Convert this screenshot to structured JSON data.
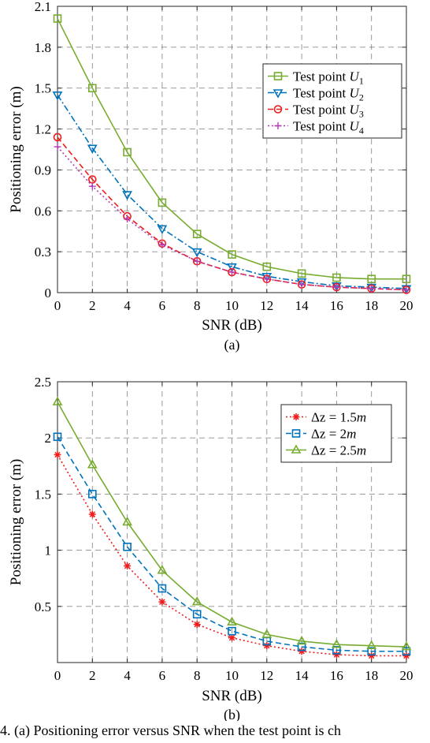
{
  "chart_data": [
    {
      "type": "line",
      "subfigure_label": "(a)",
      "xlabel": "SNR (dB)",
      "ylabel": "Positioning error (m)",
      "xlim": [
        0,
        20
      ],
      "ylim": [
        0,
        2.1
      ],
      "xticks": [
        "0",
        "2",
        "4",
        "6",
        "8",
        "10",
        "12",
        "14",
        "16",
        "18",
        "20"
      ],
      "yticks": [
        "0",
        "0.3",
        "0.6",
        "0.9",
        "1.2",
        "1.5",
        "1.8",
        "2.1"
      ],
      "grid": true,
      "legend_position": "right",
      "x": [
        0,
        2,
        4,
        6,
        8,
        10,
        12,
        14,
        16,
        18,
        20
      ],
      "series": [
        {
          "name": "Test point U1",
          "legend_main": "Test point ",
          "legend_var": "U",
          "legend_sub": "1",
          "color": "#77ac30",
          "marker": "square",
          "dash": "solid",
          "values": [
            2.01,
            1.5,
            1.03,
            0.66,
            0.43,
            0.28,
            0.19,
            0.14,
            0.11,
            0.1,
            0.1
          ]
        },
        {
          "name": "Test point U2",
          "legend_main": "Test point ",
          "legend_var": "U",
          "legend_sub": "2",
          "color": "#0072bd",
          "marker": "triangle-down",
          "dash": "dashdot",
          "values": [
            1.45,
            1.06,
            0.72,
            0.47,
            0.3,
            0.19,
            0.12,
            0.08,
            0.05,
            0.04,
            0.03
          ]
        },
        {
          "name": "Test point U3",
          "legend_main": "Test point ",
          "legend_var": "U",
          "legend_sub": "3",
          "color": "#ee1c1c",
          "marker": "circle",
          "dash": "dashed",
          "values": [
            1.14,
            0.83,
            0.56,
            0.36,
            0.23,
            0.15,
            0.1,
            0.06,
            0.04,
            0.03,
            0.02
          ]
        },
        {
          "name": "Test point U4",
          "legend_main": "Test point ",
          "legend_var": "U",
          "legend_sub": "4",
          "color": "#b33bb3",
          "marker": "plus",
          "dash": "dotted",
          "values": [
            1.07,
            0.78,
            0.54,
            0.35,
            0.23,
            0.15,
            0.1,
            0.06,
            0.04,
            0.03,
            0.02
          ]
        }
      ]
    },
    {
      "type": "line",
      "subfigure_label": "(b)",
      "xlabel": "SNR (dB)",
      "ylabel": "Positioning error (m)",
      "xlim": [
        0,
        20
      ],
      "ylim": [
        0,
        2.5
      ],
      "xticks": [
        "0",
        "2",
        "4",
        "6",
        "8",
        "10",
        "12",
        "14",
        "16",
        "18",
        "20"
      ],
      "yticks": [
        "0.5",
        "1",
        "1.5",
        "2",
        "2.5"
      ],
      "grid": true,
      "legend_position": "top-right",
      "x": [
        0,
        2,
        4,
        6,
        8,
        10,
        12,
        14,
        16,
        18,
        20
      ],
      "series": [
        {
          "name": "Δz = 1.5m",
          "legend_main": "Δz = 1.5",
          "legend_var": "m",
          "legend_sub": "",
          "color": "#ee1c1c",
          "marker": "star",
          "dash": "dotted",
          "values": [
            1.85,
            1.32,
            0.86,
            0.54,
            0.34,
            0.22,
            0.15,
            0.1,
            0.07,
            0.06,
            0.06
          ]
        },
        {
          "name": "Δz = 2m",
          "legend_main": "Δz = 2",
          "legend_var": "m",
          "legend_sub": "",
          "color": "#0072bd",
          "marker": "square",
          "dash": "dashed",
          "values": [
            2.01,
            1.5,
            1.03,
            0.66,
            0.43,
            0.28,
            0.19,
            0.14,
            0.11,
            0.1,
            0.1
          ]
        },
        {
          "name": "Δz = 2.5m",
          "legend_main": "Δz = 2.5",
          "legend_var": "m",
          "legend_sub": "",
          "color": "#77ac30",
          "marker": "triangle-up",
          "dash": "solid",
          "values": [
            2.32,
            1.76,
            1.25,
            0.82,
            0.54,
            0.36,
            0.25,
            0.19,
            0.16,
            0.15,
            0.14
          ]
        }
      ]
    }
  ],
  "caption": "4. (a) Positioning error versus SNR when the test point is ch"
}
